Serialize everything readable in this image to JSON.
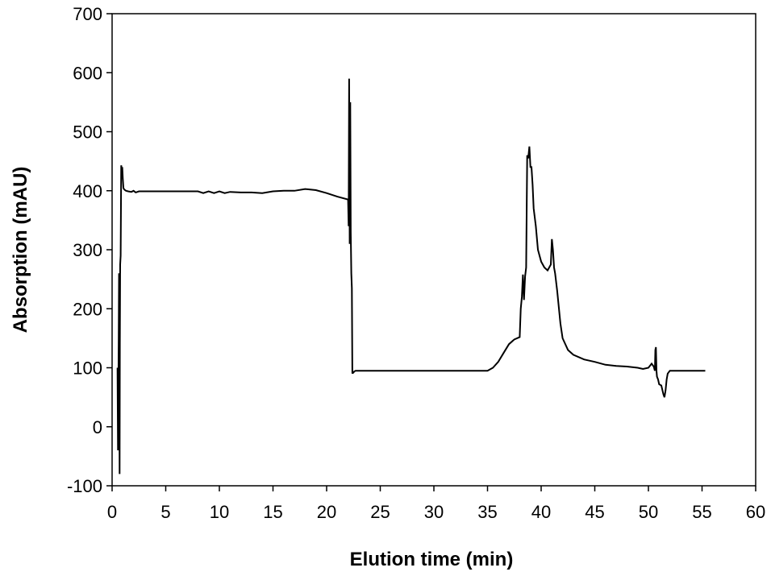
{
  "chart_data": {
    "type": "line",
    "title": "",
    "xlabel": "Elution time (min)",
    "ylabel": "Absorption (mAU)",
    "xlim": [
      0,
      60
    ],
    "ylim": [
      -100,
      700
    ],
    "x_ticks": [
      0,
      5,
      10,
      15,
      20,
      25,
      30,
      35,
      40,
      45,
      50,
      55,
      60
    ],
    "y_ticks": [
      -100,
      0,
      100,
      200,
      300,
      400,
      500,
      600,
      700
    ],
    "x_tick_labels": [
      "0",
      "5",
      "10",
      "15",
      "20",
      "25",
      "30",
      "35",
      "40",
      "45",
      "50",
      "55",
      "60"
    ],
    "y_tick_labels": [
      "-100",
      "0",
      "100",
      "200",
      "300",
      "400",
      "500",
      "600",
      "700"
    ],
    "grid": false,
    "legend": "none",
    "line_color": "#000000",
    "series": [
      {
        "x": [
          0.5,
          0.55,
          0.6,
          0.62,
          0.65,
          0.7,
          0.72,
          0.75,
          0.8,
          0.85,
          0.9,
          0.95,
          1.0,
          1.05,
          1.1,
          1.15,
          1.2,
          1.3,
          1.5,
          1.8,
          2.0,
          2.2,
          2.5,
          3.0,
          4.0,
          5.0,
          6.0,
          7.0,
          8.0,
          8.5,
          9.0,
          9.5,
          10.0,
          10.5,
          11.0,
          12.0,
          13.0,
          14.0,
          15.0,
          16.0,
          17.0,
          18.0,
          19.0,
          20.0,
          21.0,
          22.0,
          22.05,
          22.1,
          22.15,
          22.2,
          22.25,
          22.3,
          22.35,
          22.4,
          22.45,
          22.5,
          22.6,
          22.7,
          22.8,
          23.0,
          25.0,
          30.0,
          35.0,
          35.5,
          36.0,
          36.5,
          37.0,
          37.5,
          38.0,
          38.1,
          38.2,
          38.3,
          38.4,
          38.5,
          38.6,
          38.7,
          38.8,
          38.9,
          39.0,
          39.1,
          39.2,
          39.3,
          39.5,
          39.7,
          40.0,
          40.3,
          40.6,
          40.9,
          41.0,
          41.1,
          41.2,
          41.3,
          41.5,
          41.8,
          42.0,
          42.5,
          43.0,
          44.0,
          45.0,
          46.0,
          47.0,
          48.0,
          49.0,
          49.5,
          50.0,
          50.3,
          50.5,
          50.6,
          50.65,
          50.7,
          50.75,
          50.8,
          50.9,
          51.0,
          51.2,
          51.4,
          51.5,
          51.6,
          51.7,
          51.8,
          52.0,
          52.5,
          53.0,
          54.0,
          55.0,
          55.3
        ],
        "values": [
          100,
          -40,
          110,
          150,
          260,
          -80,
          140,
          275,
          290,
          443,
          435,
          440,
          420,
          405,
          403,
          402,
          401,
          400,
          399,
          398,
          400,
          397,
          399,
          399,
          399,
          399,
          399,
          399,
          399,
          396,
          399,
          396,
          399,
          396,
          398,
          397,
          397,
          396,
          399,
          400,
          400,
          403,
          401,
          396,
          390,
          385,
          340,
          590,
          310,
          550,
          330,
          260,
          235,
          90,
          93,
          92,
          94,
          95,
          95,
          95,
          95,
          95,
          95,
          100,
          110,
          125,
          140,
          148,
          152,
          200,
          220,
          258,
          215,
          255,
          270,
          460,
          455,
          475,
          440,
          440,
          410,
          370,
          340,
          300,
          280,
          270,
          265,
          275,
          318,
          300,
          270,
          260,
          230,
          175,
          150,
          130,
          122,
          114,
          110,
          105,
          103,
          102,
          100,
          98,
          100,
          107,
          102,
          95,
          130,
          135,
          95,
          85,
          80,
          72,
          70,
          55,
          50,
          62,
          80,
          90,
          95,
          95,
          95,
          95,
          95,
          95
        ]
      }
    ]
  }
}
